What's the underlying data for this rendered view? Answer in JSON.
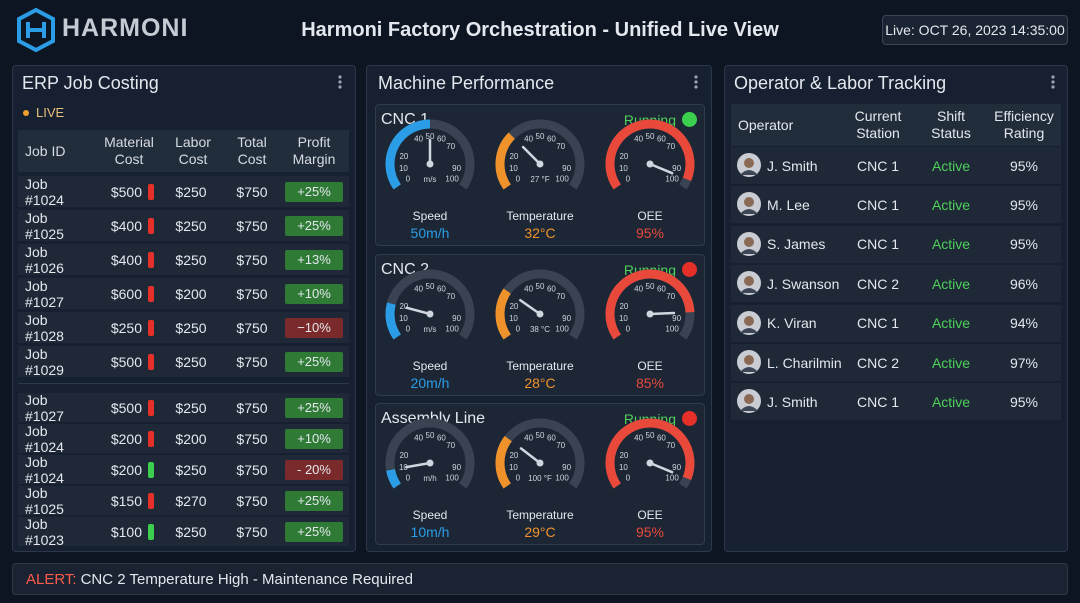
{
  "header": {
    "logo": "HARMONI",
    "title": "Harmoni Factory Orchestration - Unified Live View",
    "live": "Live: OCT 26, 2023 14:35:00"
  },
  "erp": {
    "title": "ERP Job Costing",
    "live": "LIVE",
    "columns": [
      "Job ID",
      "Material Cost",
      "Labor Cost",
      "Total Cost",
      "Profit Margin"
    ],
    "rows": [
      {
        "job": "Job #1024",
        "material": "$500",
        "flag": "#e5302a",
        "labor": "$250",
        "total": "$750",
        "margin": "+25%",
        "margin_color": "#2f7a35"
      },
      {
        "job": "Job #1025",
        "material": "$400",
        "flag": "#e5302a",
        "labor": "$250",
        "total": "$750",
        "margin": "+25%",
        "margin_color": "#2f7a35"
      },
      {
        "job": "Job #1026",
        "material": "$400",
        "flag": "#e5302a",
        "labor": "$250",
        "total": "$750",
        "margin": "+13%",
        "margin_color": "#2f7a35"
      },
      {
        "job": "Job #1027",
        "material": "$600",
        "flag": "#e5302a",
        "labor": "$200",
        "total": "$750",
        "margin": "+10%",
        "margin_color": "#2f7a35"
      },
      {
        "job": "Job #1028",
        "material": "$250",
        "flag": "#e5302a",
        "labor": "$250",
        "total": "$750",
        "margin": "−10%",
        "margin_color": "#7a2a2a"
      },
      {
        "job": "Job #1029",
        "material": "$500",
        "flag": "#e5302a",
        "labor": "$250",
        "total": "$750",
        "margin": "+25%",
        "margin_color": "#2f7a35"
      }
    ],
    "rows2": [
      {
        "job": "Job #1027",
        "material": "$500",
        "flag": "#e5302a",
        "labor": "$250",
        "total": "$750",
        "margin": "+25%",
        "margin_color": "#2f7a35"
      },
      {
        "job": "Job #1024",
        "material": "$200",
        "flag": "#e5302a",
        "labor": "$200",
        "total": "$750",
        "margin": "+10%",
        "margin_color": "#2f7a35"
      },
      {
        "job": "Job #1024",
        "material": "$200",
        "flag": "#3ccf4e",
        "labor": "$250",
        "total": "$750",
        "margin": "- 20%",
        "margin_color": "#7a2a2a"
      },
      {
        "job": "Job #1025",
        "material": "$150",
        "flag": "#e5302a",
        "labor": "$270",
        "total": "$750",
        "margin": "+25%",
        "margin_color": "#2f7a35"
      },
      {
        "job": "Job #1023",
        "material": "$100",
        "flag": "#3ccf4e",
        "labor": "$250",
        "total": "$750",
        "margin": "+25%",
        "margin_color": "#2f7a35"
      }
    ]
  },
  "machines": {
    "title": "Machine Performance",
    "gauge_ticks": [
      0,
      10,
      20,
      40,
      50,
      60,
      70,
      90,
      100
    ],
    "items": [
      {
        "name": "CNC 1",
        "status": "Running",
        "light": "#3ccf4e",
        "gauges": [
          {
            "label": "Speed",
            "unit": "m/s",
            "value": 50,
            "value_label": "50m/h",
            "color": "#2a9de6"
          },
          {
            "label": "Temperature",
            "unit": "27 °F",
            "value": 32,
            "value_label": "32°C",
            "color": "#f0922b"
          },
          {
            "label": "OEE",
            "value": 95,
            "value_label": "95%",
            "color": "#e8493a"
          }
        ]
      },
      {
        "name": "CNC 2",
        "status": "Running",
        "light": "#e5302a",
        "gauges": [
          {
            "label": "Speed",
            "unit": "m/s",
            "value": 20,
            "value_label": "20m/h",
            "color": "#2a9de6"
          },
          {
            "label": "Temperature",
            "unit": "38 °C",
            "value": 28,
            "value_label": "28°C",
            "color": "#f0922b"
          },
          {
            "label": "OEE",
            "value": 85,
            "value_label": "85%",
            "color": "#e8493a"
          }
        ]
      },
      {
        "name": "Assembly Line",
        "status": "Running",
        "light": "#e5302a",
        "gauges": [
          {
            "label": "Speed",
            "unit": "m/h",
            "value": 10,
            "value_label": "10m/h",
            "color": "#2a9de6"
          },
          {
            "label": "Temperature",
            "unit": "100 °F",
            "value": 29,
            "value_label": "29°C",
            "color": "#f0922b"
          },
          {
            "label": "OEE",
            "value": 95,
            "value_label": "95%",
            "color": "#e8493a"
          }
        ]
      }
    ]
  },
  "operators": {
    "title": "Operator & Labor Tracking",
    "columns": [
      "Operator",
      "Current Station",
      "Shift Status",
      "Efficiency Rating"
    ],
    "rows": [
      {
        "name": "J. Smith",
        "station": "CNC 1",
        "status": "Active",
        "rating": "95%"
      },
      {
        "name": "M. Lee",
        "station": "CNC 1",
        "status": "Active",
        "rating": "95%"
      },
      {
        "name": "S. James",
        "station": "CNC 1",
        "status": "Active",
        "rating": "95%"
      },
      {
        "name": "J. Swanson",
        "station": "CNC 2",
        "status": "Active",
        "rating": "96%"
      },
      {
        "name": "K. Viran",
        "station": "CNC 1",
        "status": "Active",
        "rating": "94%"
      },
      {
        "name": "L. Charilmin",
        "station": "CNC 2",
        "status": "Active",
        "rating": "97%"
      },
      {
        "name": "J. Smith",
        "station": "CNC 1",
        "status": "Active",
        "rating": "95%"
      }
    ]
  },
  "alert": {
    "label": "ALERT:",
    "message": "CNC 2 Temperature High - Maintenance Required"
  }
}
